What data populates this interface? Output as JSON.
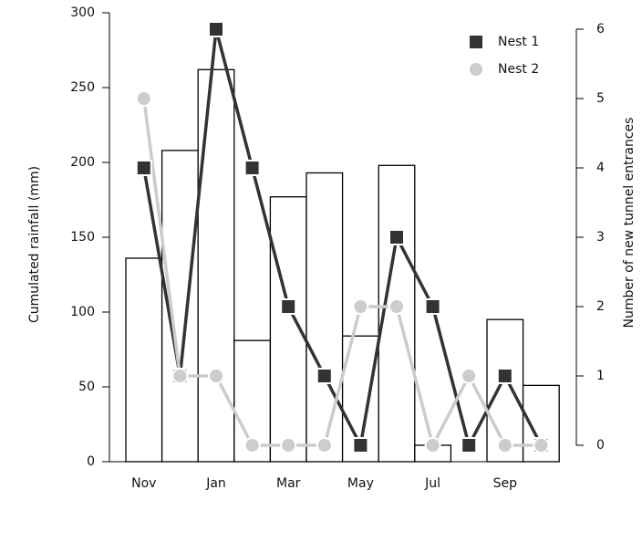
{
  "chart_data": {
    "type": "bar",
    "categories": [
      "Nov",
      null,
      "Jan",
      null,
      "Mar",
      null,
      "May",
      null,
      "Jul",
      null,
      "Sep",
      null
    ],
    "values": [
      136,
      208,
      262,
      81,
      177,
      193,
      84,
      198,
      11,
      0,
      95,
      51
    ],
    "color": "#ffffff",
    "ylabel": "Cumulated rainfall (mm)",
    "ylim": [
      0,
      300
    ],
    "yticks": [
      0,
      50,
      100,
      150,
      200,
      250,
      300
    ],
    "y2label": "Number of new tunnel entrances",
    "y2lim": [
      0,
      6
    ],
    "y2ticks": [
      0,
      1,
      2,
      3,
      4,
      5,
      6
    ],
    "legend": "upper right",
    "series": [
      {
        "name": "Nest 1",
        "type": "line",
        "axis": "y2",
        "color": "#333333",
        "marker": "square",
        "values": [
          4,
          1,
          6,
          4,
          2,
          1,
          0,
          3,
          2,
          0,
          1,
          0
        ]
      },
      {
        "name": "Nest 2",
        "type": "line",
        "axis": "y2",
        "color": "#cccccc",
        "marker": "circle",
        "values": [
          5,
          1,
          1,
          0,
          0,
          0,
          2,
          2,
          0,
          1,
          0,
          0
        ]
      }
    ]
  }
}
